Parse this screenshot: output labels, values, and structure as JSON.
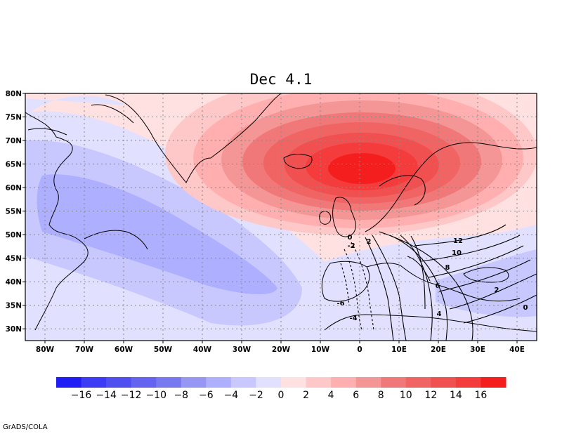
{
  "title": "Dec 4.1",
  "credit": "GrADS/COLA",
  "map": {
    "lat_labels": [
      "80N",
      "75N",
      "70N",
      "65N",
      "60N",
      "55N",
      "50N",
      "45N",
      "40N",
      "35N",
      "30N"
    ],
    "lon_labels": [
      "80W",
      "70W",
      "60W",
      "50W",
      "40W",
      "30W",
      "20W",
      "10W",
      "0",
      "10E",
      "20E",
      "30E",
      "40E"
    ]
  },
  "colorbar": {
    "colors": [
      "#1e1ef5",
      "#3c3cf5",
      "#5050f0",
      "#6464f0",
      "#7878f0",
      "#9696f5",
      "#afafff",
      "#c8c8ff",
      "#e1e1ff",
      "#ffe1e1",
      "#ffc8c8",
      "#ffafaf",
      "#f59696",
      "#f07878",
      "#f06464",
      "#f05050",
      "#f53c3c",
      "#f51e1e"
    ],
    "labels": [
      "-16",
      "-14",
      "-12",
      "-10",
      "-8",
      "-6",
      "-4",
      "-2",
      "0",
      "2",
      "4",
      "6",
      "8",
      "10",
      "12",
      "14",
      "16"
    ]
  },
  "contour_labels": [
    "12",
    "10",
    "8",
    "6",
    "4",
    "2",
    "0",
    "-2",
    "-4",
    "-6",
    "0",
    "2"
  ]
}
